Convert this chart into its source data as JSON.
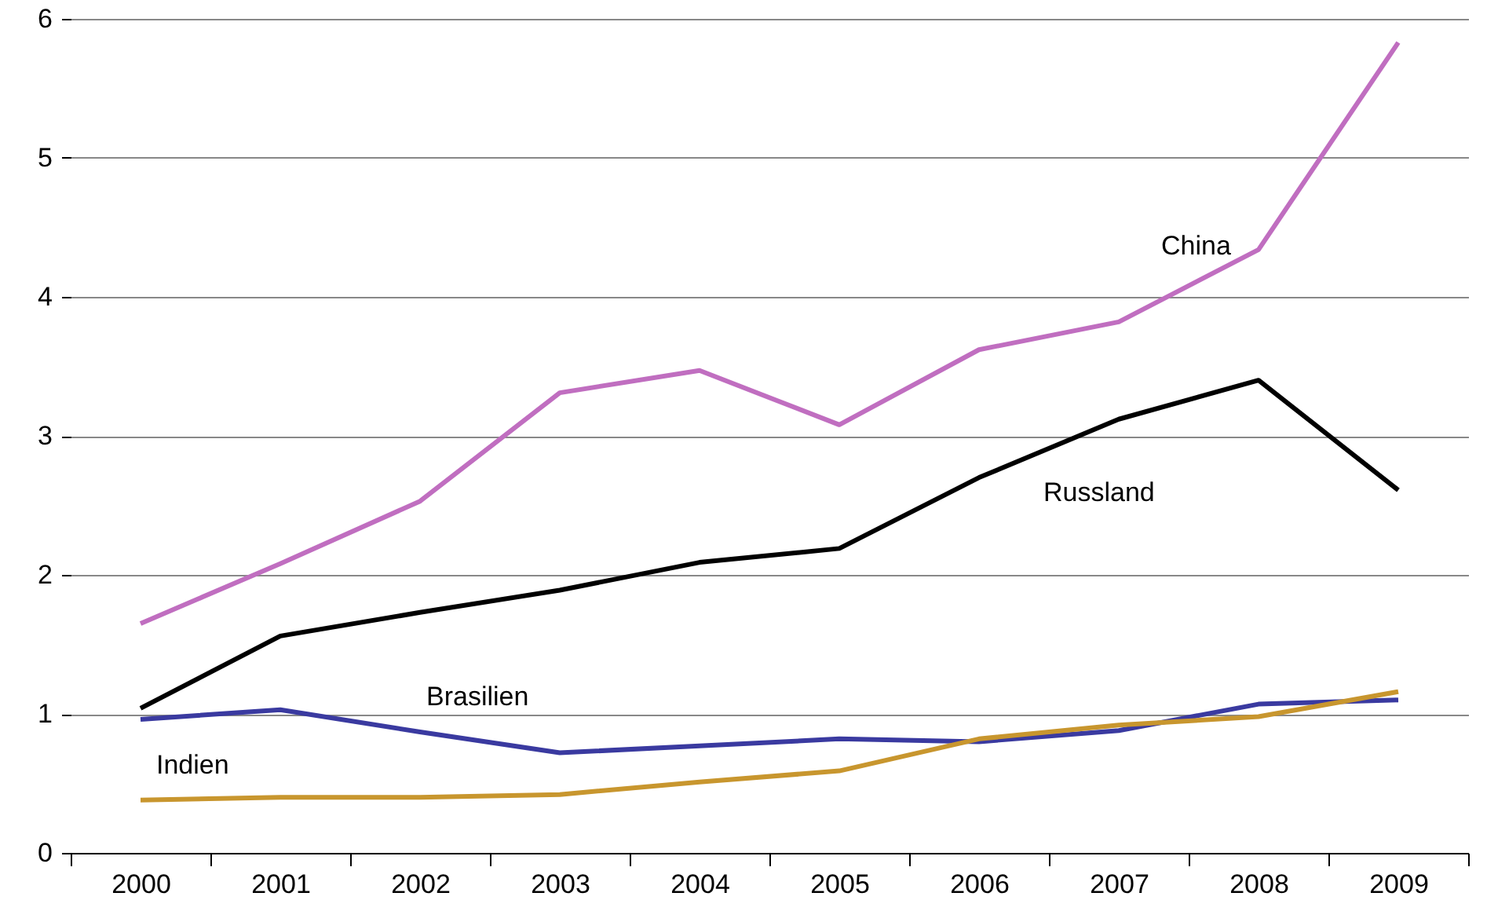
{
  "chart_data": {
    "type": "line",
    "categories": [
      "2000",
      "2001",
      "2002",
      "2003",
      "2004",
      "2005",
      "2006",
      "2007",
      "2008",
      "2009"
    ],
    "series": [
      {
        "name": "China",
        "color": "#c06ec0",
        "values": [
          1.65,
          2.08,
          2.53,
          3.31,
          3.47,
          3.08,
          3.62,
          3.82,
          4.34,
          5.83
        ]
      },
      {
        "name": "Russland",
        "color": "#000000",
        "values": [
          1.04,
          1.56,
          1.73,
          1.89,
          2.09,
          2.19,
          2.7,
          3.12,
          3.4,
          2.61
        ]
      },
      {
        "name": "Brasilien",
        "color": "#3a3aa0",
        "values": [
          0.96,
          1.03,
          0.87,
          0.72,
          0.77,
          0.82,
          0.8,
          0.88,
          1.07,
          1.1
        ]
      },
      {
        "name": "Indien",
        "color": "#c8962e",
        "values": [
          0.38,
          0.4,
          0.4,
          0.42,
          0.51,
          0.59,
          0.82,
          0.92,
          0.98,
          1.16
        ]
      }
    ],
    "ylim": [
      0,
      6
    ],
    "yticks": [
      0,
      1,
      2,
      3,
      4,
      5,
      6
    ],
    "grid": "y",
    "marker": "none",
    "line_style": "solid"
  }
}
